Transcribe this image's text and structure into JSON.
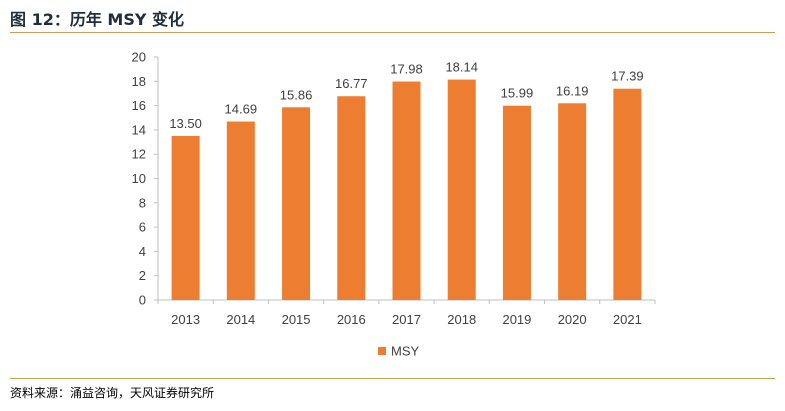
{
  "figure": {
    "title": "图 12：历年 MSY 变化",
    "source": "资料来源：涌益咨询，天风证券研究所"
  },
  "colors": {
    "bar": "#ED7D31",
    "axis": "#BFBFBF",
    "rule": "#C5A253",
    "text": "#404040"
  },
  "chart_data": {
    "type": "bar",
    "categories": [
      "2013",
      "2014",
      "2015",
      "2016",
      "2017",
      "2018",
      "2019",
      "2020",
      "2021"
    ],
    "series": [
      {
        "name": "MSY",
        "values": [
          13.5,
          14.69,
          15.86,
          16.77,
          17.98,
          18.14,
          15.99,
          16.19,
          17.39
        ],
        "labels": [
          "13.50",
          "14.69",
          "15.86",
          "16.77",
          "17.98",
          "18.14",
          "15.99",
          "16.19",
          "17.39"
        ]
      }
    ],
    "ylim": [
      0,
      20
    ],
    "yticks": [
      0,
      2,
      4,
      6,
      8,
      10,
      12,
      14,
      16,
      18,
      20
    ],
    "grid": false,
    "legend": "bottom-center",
    "data_labels": true
  }
}
